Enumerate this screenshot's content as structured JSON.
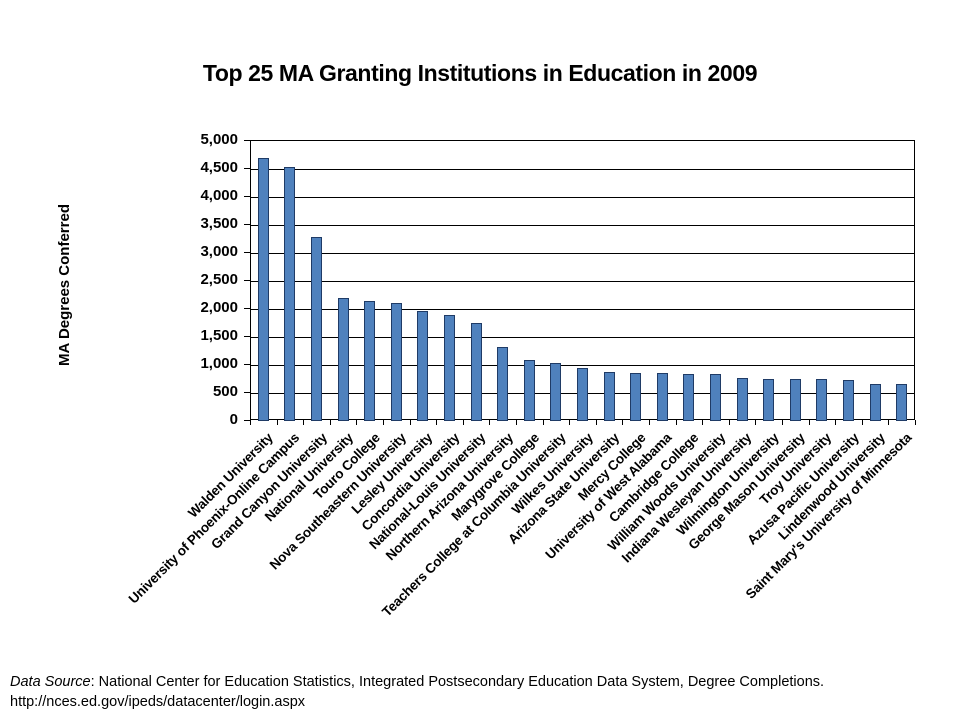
{
  "title": "Top 25 MA Granting Institutions in Education in 2009",
  "y_axis": {
    "title": "MA Degrees Conferred"
  },
  "footer": {
    "source_label": "Data Source",
    "source_rest": ": National Center for Education Statistics, Integrated Postsecondary Education Data System, Degree Completions.",
    "url": "http://nces.ed.gov/ipeds/datacenter/login.aspx"
  },
  "colors": {
    "bar_fill": "#4f81bd",
    "bar_border": "#1f3b66",
    "axis": "#000000"
  },
  "chart_data": {
    "type": "bar",
    "title": "Top 25 MA Granting Institutions in Education in 2009",
    "xlabel": "",
    "ylabel": "MA Degrees Conferred",
    "ylim": [
      0,
      5000
    ],
    "ytick_interval": 500,
    "ytick_labels": [
      "0",
      "500",
      "1,000",
      "1,500",
      "2,000",
      "2,500",
      "3,000",
      "3,500",
      "4,000",
      "4,500",
      "5,000"
    ],
    "grid": true,
    "legend": false,
    "categories": [
      "Walden University",
      "University of Phoenix-Online Campus",
      "Grand Canyon University",
      "National University",
      "Touro College",
      "Nova Southeastern University",
      "Lesley University",
      "Concordia University",
      "National-Louis University",
      "Northern Arizona University",
      "Marygrove College",
      "Teachers College at Columbia University",
      "Wilkes University",
      "Arizona State University",
      "Mercy College",
      "University of West Alabama",
      "Cambridge College",
      "William Woods University",
      "Indiana Wesleyan University",
      "Wilmington University",
      "George Mason University",
      "Troy University",
      "Azusa Pacific University",
      "Lindenwood University",
      "Saint Mary's University of Minnesota"
    ],
    "values": [
      4700,
      4530,
      3280,
      2200,
      2150,
      2100,
      1960,
      1890,
      1750,
      1320,
      1090,
      1040,
      950,
      870,
      860,
      855,
      840,
      840,
      765,
      750,
      750,
      750,
      730,
      665,
      655
    ]
  }
}
